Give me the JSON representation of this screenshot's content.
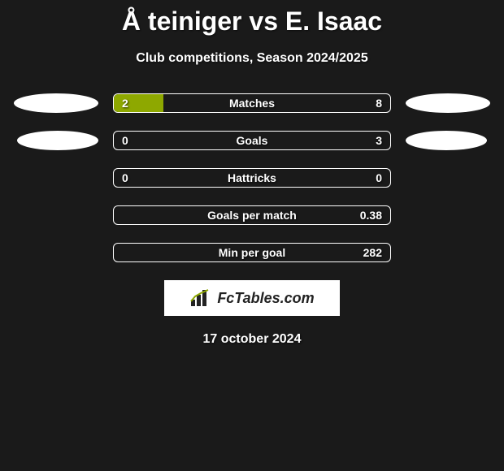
{
  "title": "Å teiniger vs E. Isaac",
  "subtitle": "Club competitions, Season 2024/2025",
  "date": "17 october 2024",
  "logo": "FcTables.com",
  "colors": {
    "background": "#1a1a1a",
    "fill": "#8ea800",
    "border": "#ffffff",
    "text": "#ffffff"
  },
  "rows": [
    {
      "label": "Matches",
      "left_value": "2",
      "right_value": "8",
      "left_pct": 18,
      "right_pct": 0,
      "ellipse_left_w": 104,
      "ellipse_right_w": 104,
      "show_ellipses": true
    },
    {
      "label": "Goals",
      "left_value": "0",
      "right_value": "3",
      "left_pct": 0,
      "right_pct": 0,
      "ellipse_left_w": 100,
      "ellipse_right_w": 100,
      "show_ellipses": true
    },
    {
      "label": "Hattricks",
      "left_value": "0",
      "right_value": "0",
      "left_pct": 0,
      "right_pct": 0,
      "show_ellipses": false
    },
    {
      "label": "Goals per match",
      "left_value": "",
      "right_value": "0.38",
      "left_pct": 0,
      "right_pct": 0,
      "show_ellipses": false
    },
    {
      "label": "Min per goal",
      "left_value": "",
      "right_value": "282",
      "left_pct": 0,
      "right_pct": 0,
      "show_ellipses": false
    }
  ]
}
